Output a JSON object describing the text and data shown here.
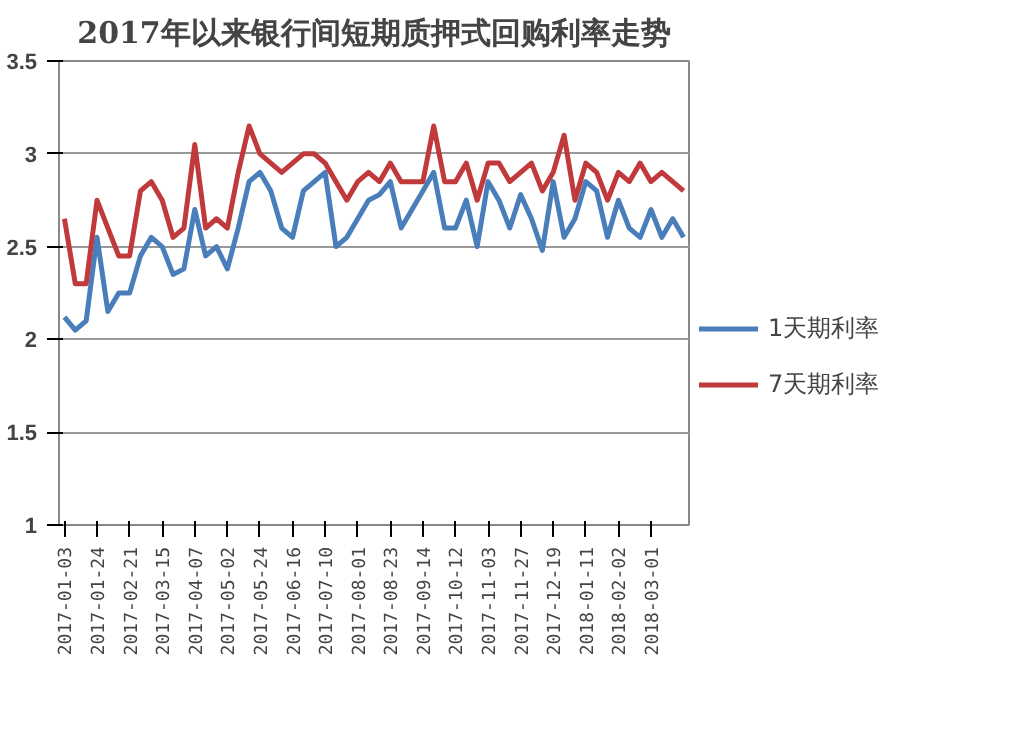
{
  "chart_data": {
    "type": "line",
    "title": "2017年以来银行间短期质押式回购利率走势",
    "categories": [
      "2017-01-03",
      null,
      null,
      "2017-01-24",
      null,
      null,
      "2017-02-21",
      null,
      null,
      "2017-03-15",
      null,
      null,
      "2017-04-07",
      null,
      null,
      "2017-05-02",
      null,
      null,
      "2017-05-24",
      null,
      null,
      "2017-06-16",
      null,
      null,
      "2017-07-10",
      null,
      null,
      "2017-08-01",
      null,
      null,
      "2017-08-23",
      null,
      null,
      "2017-09-14",
      null,
      null,
      "2017-10-12",
      null,
      null,
      "2017-11-03",
      null,
      null,
      "2017-11-27",
      null,
      null,
      "2017-12-19",
      null,
      null,
      "2018-01-11",
      null,
      null,
      "2018-02-02",
      null,
      null,
      "2018-03-01",
      null,
      null,
      null
    ],
    "series": [
      {
        "name": "1天期利率",
        "color": "#4a7ebb",
        "values": [
          2.12,
          2.05,
          2.1,
          2.55,
          2.15,
          2.25,
          2.25,
          2.45,
          2.55,
          2.5,
          2.35,
          2.38,
          2.7,
          2.45,
          2.5,
          2.38,
          2.6,
          2.85,
          2.9,
          2.8,
          2.6,
          2.55,
          2.8,
          2.85,
          2.9,
          2.5,
          2.55,
          2.65,
          2.75,
          2.78,
          2.85,
          2.6,
          2.7,
          2.8,
          2.9,
          2.6,
          2.6,
          2.75,
          2.5,
          2.85,
          2.75,
          2.6,
          2.78,
          2.65,
          2.48,
          2.85,
          2.55,
          2.65,
          2.85,
          2.8,
          2.55,
          2.75,
          2.6,
          2.55,
          2.7,
          2.55,
          2.65,
          2.55
        ]
      },
      {
        "name": "7天期利率",
        "color": "#c0393b",
        "values": [
          2.65,
          2.3,
          2.3,
          2.75,
          2.6,
          2.45,
          2.45,
          2.8,
          2.85,
          2.75,
          2.55,
          2.6,
          3.05,
          2.6,
          2.65,
          2.6,
          2.9,
          3.15,
          3.0,
          2.95,
          2.9,
          2.95,
          3.0,
          3.0,
          2.95,
          2.85,
          2.75,
          2.85,
          2.9,
          2.85,
          2.95,
          2.85,
          2.85,
          2.85,
          3.15,
          2.85,
          2.85,
          2.95,
          2.75,
          2.95,
          2.95,
          2.85,
          2.9,
          2.95,
          2.8,
          2.9,
          3.1,
          2.75,
          2.95,
          2.9,
          2.75,
          2.9,
          2.85,
          2.95,
          2.85,
          2.9,
          2.85,
          2.8
        ]
      }
    ],
    "ylim": [
      1,
      3.5
    ],
    "yticks": [
      1,
      1.5,
      2,
      2.5,
      3,
      3.5
    ],
    "grid": "y",
    "legend": "right",
    "marker": "none",
    "line_style": "solid"
  }
}
